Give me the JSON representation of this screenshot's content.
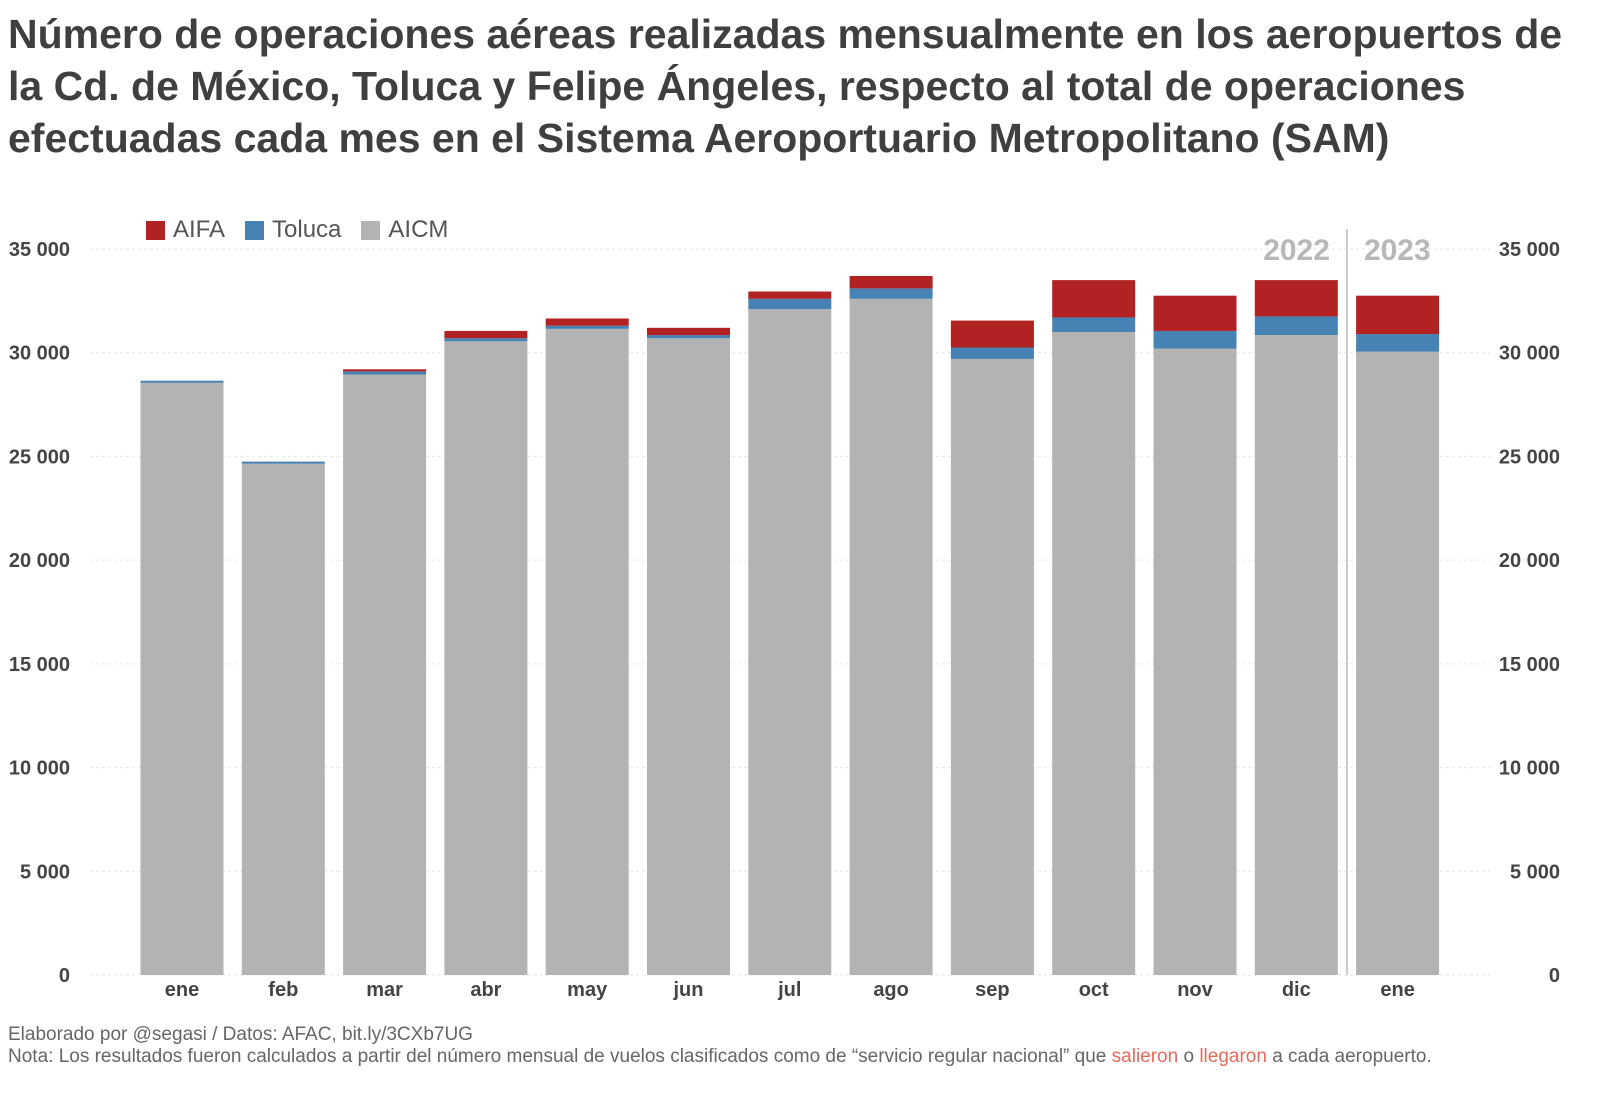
{
  "chart_data": {
    "type": "bar",
    "stacked": true,
    "title": "Número de operaciones aéreas realizadas mensualmente en los aeropuertos de la Cd. de México, Toluca y Felipe Ángeles, respecto al total de operaciones efectuadas cada mes en el Sistema Aeroportuario Metropolitano (SAM)",
    "categories": [
      "ene",
      "feb",
      "mar",
      "abr",
      "may",
      "jun",
      "jul",
      "ago",
      "sep",
      "oct",
      "nov",
      "dic",
      "ene"
    ],
    "years": [
      {
        "label": "2022",
        "start_index": 0,
        "end_index": 11
      },
      {
        "label": "2023",
        "start_index": 12,
        "end_index": 12
      }
    ],
    "series": [
      {
        "name": "AICM",
        "color": "#b3b3b3",
        "values": [
          28550,
          24650,
          28950,
          30550,
          31150,
          30700,
          32100,
          32600,
          29700,
          31000,
          30200,
          30850,
          30050
        ]
      },
      {
        "name": "Toluca",
        "color": "#4682b4",
        "values": [
          100,
          100,
          150,
          150,
          150,
          150,
          500,
          500,
          550,
          700,
          850,
          900,
          850
        ]
      },
      {
        "name": "AIFA",
        "color": "#b22222",
        "values": [
          0,
          0,
          100,
          350,
          350,
          350,
          350,
          600,
          1300,
          1800,
          1700,
          1750,
          1850
        ]
      }
    ],
    "ylim": [
      0,
      35000
    ],
    "yticks": [
      "0",
      "5 000",
      "10 000",
      "15 000",
      "20 000",
      "25 000",
      "30 000",
      "35 000"
    ],
    "legend_position": "top-left"
  },
  "legend": {
    "aifa": "AIFA",
    "toluca": "Toluca",
    "aicm": "AICM"
  },
  "footer": {
    "line1": "Elaborado por @segasi / Datos: AFAC, bit.ly/3CXb7UG",
    "line2_before": "Nota: Los resultados fueron calculados a partir del número mensual de vuelos clasificados como de “servicio regular nacional” que ",
    "line2_word1": "salieron",
    "line2_mid": " o ",
    "line2_word2": "llegaron",
    "line2_after": " a cada aeropuerto."
  }
}
